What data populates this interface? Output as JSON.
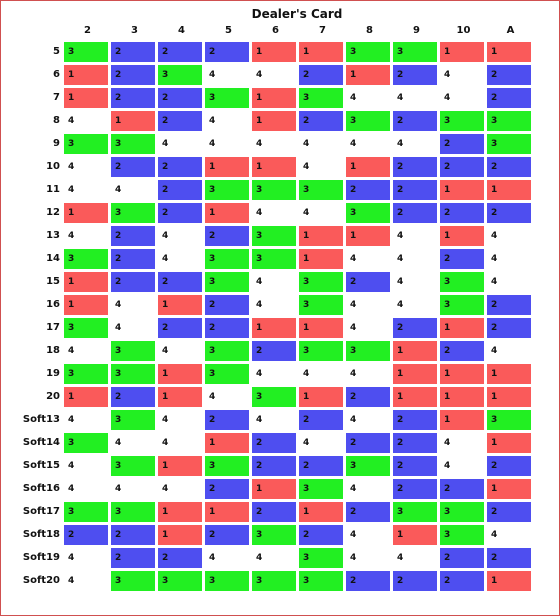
{
  "title": "Dealer's Card",
  "columns": [
    "2",
    "3",
    "4",
    "5",
    "6",
    "7",
    "8",
    "9",
    "10",
    "A"
  ],
  "rows": [
    {
      "label": "5",
      "values": [
        "3",
        "2",
        "2",
        "2",
        "1",
        "1",
        "3",
        "3",
        "1",
        "1"
      ]
    },
    {
      "label": "6",
      "values": [
        "1",
        "2",
        "3",
        "4",
        "4",
        "2",
        "1",
        "2",
        "4",
        "2"
      ]
    },
    {
      "label": "7",
      "values": [
        "1",
        "2",
        "2",
        "3",
        "1",
        "3",
        "4",
        "4",
        "4",
        "2"
      ]
    },
    {
      "label": "8",
      "values": [
        "4",
        "1",
        "2",
        "4",
        "1",
        "2",
        "3",
        "2",
        "3",
        "3"
      ]
    },
    {
      "label": "9",
      "values": [
        "3",
        "3",
        "4",
        "4",
        "4",
        "4",
        "4",
        "4",
        "2",
        "3"
      ]
    },
    {
      "label": "10",
      "values": [
        "4",
        "2",
        "2",
        "1",
        "1",
        "4",
        "1",
        "2",
        "2",
        "2"
      ]
    },
    {
      "label": "11",
      "values": [
        "4",
        "4",
        "2",
        "3",
        "3",
        "3",
        "2",
        "2",
        "1",
        "1"
      ]
    },
    {
      "label": "12",
      "values": [
        "1",
        "3",
        "2",
        "1",
        "4",
        "4",
        "3",
        "2",
        "2",
        "2"
      ]
    },
    {
      "label": "13",
      "values": [
        "4",
        "2",
        "4",
        "2",
        "3",
        "1",
        "1",
        "4",
        "1",
        "4"
      ]
    },
    {
      "label": "14",
      "values": [
        "3",
        "2",
        "4",
        "3",
        "3",
        "1",
        "4",
        "4",
        "2",
        "4"
      ]
    },
    {
      "label": "15",
      "values": [
        "1",
        "2",
        "2",
        "3",
        "4",
        "3",
        "2",
        "4",
        "3",
        "4"
      ]
    },
    {
      "label": "16",
      "values": [
        "1",
        "4",
        "1",
        "2",
        "4",
        "3",
        "4",
        "4",
        "3",
        "2"
      ]
    },
    {
      "label": "17",
      "values": [
        "3",
        "4",
        "2",
        "2",
        "1",
        "1",
        "4",
        "2",
        "1",
        "2"
      ]
    },
    {
      "label": "18",
      "values": [
        "4",
        "3",
        "4",
        "3",
        "2",
        "3",
        "3",
        "1",
        "2",
        "4"
      ]
    },
    {
      "label": "19",
      "values": [
        "3",
        "3",
        "1",
        "3",
        "4",
        "4",
        "4",
        "1",
        "1",
        "1"
      ]
    },
    {
      "label": "20",
      "values": [
        "1",
        "2",
        "1",
        "4",
        "3",
        "1",
        "2",
        "1",
        "1",
        "1"
      ]
    },
    {
      "label": "Soft13",
      "values": [
        "4",
        "3",
        "4",
        "2",
        "4",
        "2",
        "4",
        "2",
        "1",
        "3"
      ]
    },
    {
      "label": "Soft14",
      "values": [
        "3",
        "4",
        "4",
        "1",
        "2",
        "4",
        "2",
        "2",
        "4",
        "1"
      ]
    },
    {
      "label": "Soft15",
      "values": [
        "4",
        "3",
        "1",
        "3",
        "2",
        "2",
        "3",
        "2",
        "4",
        "2"
      ]
    },
    {
      "label": "Soft16",
      "values": [
        "4",
        "4",
        "4",
        "2",
        "1",
        "3",
        "4",
        "2",
        "2",
        "1"
      ]
    },
    {
      "label": "Soft17",
      "values": [
        "3",
        "3",
        "1",
        "1",
        "2",
        "1",
        "2",
        "3",
        "3",
        "2"
      ]
    },
    {
      "label": "Soft18",
      "values": [
        "2",
        "2",
        "1",
        "2",
        "3",
        "2",
        "4",
        "1",
        "3",
        "4"
      ]
    },
    {
      "label": "Soft19",
      "values": [
        "4",
        "2",
        "2",
        "4",
        "4",
        "3",
        "4",
        "4",
        "2",
        "2"
      ]
    },
    {
      "label": "Soft20",
      "values": [
        "4",
        "3",
        "3",
        "3",
        "3",
        "3",
        "2",
        "2",
        "2",
        "1"
      ]
    }
  ],
  "colors": {
    "1": "#fa5a5a",
    "2": "#4e4ef0",
    "3": "#22ef22",
    "4": "transparent"
  }
}
